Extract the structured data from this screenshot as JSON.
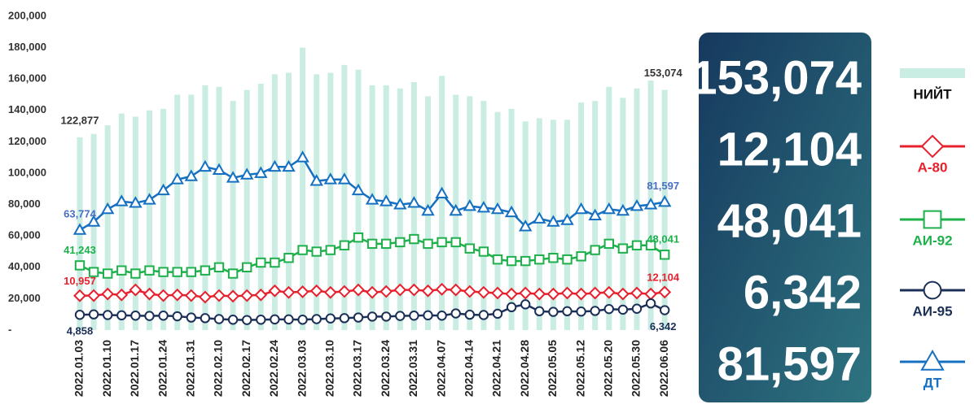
{
  "chart_data": {
    "type": "bar",
    "categories": [
      "2022.01.03",
      null,
      "2022.01.10",
      null,
      "2022.01.17",
      null,
      "2022.01.24",
      null,
      "2022.01.31",
      null,
      "2022.02.10",
      null,
      "2022.02.17",
      null,
      "2022.02.24",
      null,
      "2022.03.03",
      null,
      "2022.03.10",
      null,
      "2022.03.17",
      null,
      "2022.03.24",
      null,
      "2022.03.31",
      null,
      "2022.04.07",
      null,
      "2022.04.14",
      null,
      "2022.04.21",
      null,
      "2022.04.28",
      null,
      "2022.05.05",
      null,
      "2022.05.12",
      null,
      "2022.05.20",
      null,
      "2022.05.30",
      null,
      "2022.06.06"
    ],
    "ylim": [
      0,
      200000
    ],
    "yticks": [
      {
        "value": 0,
        "label": "-"
      },
      {
        "value": 20000,
        "label": "20,000"
      },
      {
        "value": 40000,
        "label": "40,000"
      },
      {
        "value": 60000,
        "label": "60,000"
      },
      {
        "value": 80000,
        "label": "80,000"
      },
      {
        "value": 100000,
        "label": "100,000"
      },
      {
        "value": 120000,
        "label": "120,000"
      },
      {
        "value": 140000,
        "label": "140,000"
      },
      {
        "value": 160000,
        "label": "160,000"
      },
      {
        "value": 180000,
        "label": "180,000"
      },
      {
        "value": 200000,
        "label": "200,000"
      }
    ],
    "y2lim": [
      0,
      100000
    ],
    "grid": false,
    "legend": "right",
    "series": [
      {
        "name": "НИЙТ",
        "type": "bar",
        "color": "#c9ece3",
        "label_color": "#333333",
        "values": [
          122877,
          125000,
          130500,
          138000,
          136000,
          140000,
          141000,
          150000,
          150000,
          156000,
          155000,
          146000,
          153000,
          157000,
          163000,
          164000,
          180000,
          163000,
          164000,
          169000,
          166000,
          156000,
          156000,
          154000,
          158000,
          149000,
          162000,
          150000,
          149000,
          146000,
          139000,
          141000,
          133000,
          135000,
          134000,
          134000,
          145000,
          146000,
          155000,
          148000,
          154000,
          159000,
          153074
        ],
        "value_labels": [
          "122,877",
          null,
          null,
          null,
          null,
          null,
          null,
          null,
          null,
          null,
          null,
          null,
          null,
          null,
          null,
          null,
          null,
          null,
          null,
          null,
          null,
          null,
          null,
          null,
          null,
          null,
          null,
          null,
          null,
          null,
          null,
          null,
          null,
          null,
          null,
          null,
          null,
          null,
          null,
          null,
          null,
          null,
          "153,074"
        ]
      },
      {
        "name": "А-80",
        "type": "line",
        "marker": "diamond",
        "axis": "y2",
        "color": "#e8202e",
        "label_color": "#e8202e",
        "values": [
          10957,
          11000,
          11500,
          11200,
          12800,
          11500,
          11000,
          11200,
          11000,
          10500,
          11000,
          10800,
          11000,
          11200,
          12500,
          12000,
          12200,
          12500,
          12000,
          12300,
          12800,
          12000,
          12300,
          12800,
          12800,
          12500,
          13000,
          12800,
          12300,
          12000,
          11800,
          11500,
          11800,
          11500,
          11500,
          11800,
          11500,
          11800,
          12000,
          11500,
          11800,
          11500,
          12104
        ],
        "value_labels": [
          "10,957",
          null,
          null,
          null,
          null,
          null,
          null,
          null,
          null,
          null,
          null,
          null,
          null,
          null,
          null,
          null,
          null,
          null,
          null,
          null,
          null,
          null,
          null,
          null,
          null,
          null,
          null,
          null,
          null,
          null,
          null,
          null,
          null,
          null,
          null,
          null,
          null,
          null,
          null,
          null,
          null,
          null,
          "12,104"
        ]
      },
      {
        "name": "АИ-92",
        "type": "line",
        "marker": "square",
        "color": "#1db04b",
        "label_color": "#1db04b",
        "values": [
          41243,
          37000,
          36000,
          38000,
          36000,
          38000,
          37000,
          37000,
          37000,
          38000,
          40000,
          36000,
          40000,
          43000,
          43000,
          46000,
          51000,
          50000,
          51000,
          54000,
          59000,
          55000,
          55000,
          56000,
          58000,
          55000,
          56000,
          56000,
          52000,
          50000,
          45000,
          44000,
          44000,
          45000,
          46000,
          45000,
          47000,
          51000,
          55000,
          52000,
          54000,
          54000,
          48041
        ],
        "value_labels": [
          "41,243",
          null,
          null,
          null,
          null,
          null,
          null,
          null,
          null,
          null,
          null,
          null,
          null,
          null,
          null,
          null,
          null,
          null,
          null,
          null,
          null,
          null,
          null,
          null,
          null,
          null,
          null,
          null,
          null,
          null,
          null,
          null,
          null,
          null,
          null,
          null,
          null,
          null,
          null,
          null,
          null,
          null,
          "48,041"
        ]
      },
      {
        "name": "АИ-95",
        "type": "line",
        "marker": "circle",
        "axis": "y2",
        "color": "#1b2f57",
        "label_color": "#1b2f57",
        "values": [
          4858,
          5000,
          4800,
          4700,
          4600,
          4500,
          4600,
          4400,
          4000,
          3800,
          3500,
          3300,
          3200,
          3300,
          3400,
          3400,
          3300,
          3500,
          3700,
          3800,
          4000,
          4300,
          4300,
          4500,
          4600,
          4700,
          4600,
          5300,
          4900,
          4800,
          5200,
          7300,
          8200,
          6000,
          5800,
          6000,
          5900,
          6100,
          6700,
          6500,
          6800,
          8500,
          6342
        ],
        "value_labels": [
          "4,858",
          null,
          null,
          null,
          null,
          null,
          null,
          null,
          null,
          null,
          null,
          null,
          null,
          null,
          null,
          null,
          null,
          null,
          null,
          null,
          null,
          null,
          null,
          null,
          null,
          null,
          null,
          null,
          null,
          null,
          null,
          null,
          null,
          null,
          null,
          null,
          null,
          null,
          null,
          null,
          null,
          null,
          "6,342"
        ]
      },
      {
        "name": "ДТ",
        "type": "line",
        "marker": "triangle",
        "color": "#1670c2",
        "label_color": "#4a6fc4",
        "values": [
          63774,
          69000,
          77000,
          82000,
          81000,
          83000,
          89000,
          96000,
          98000,
          104000,
          102000,
          97000,
          99000,
          100000,
          104000,
          104000,
          110000,
          95000,
          96000,
          96000,
          89000,
          83000,
          82000,
          80000,
          81000,
          76000,
          87000,
          76000,
          79000,
          78000,
          77000,
          75000,
          66000,
          71000,
          69000,
          70000,
          77000,
          73000,
          77000,
          76000,
          79000,
          80000,
          81597
        ],
        "value_labels": [
          "63,774",
          null,
          null,
          null,
          null,
          null,
          null,
          null,
          null,
          null,
          null,
          null,
          null,
          null,
          null,
          null,
          null,
          null,
          null,
          null,
          null,
          null,
          null,
          null,
          null,
          null,
          null,
          null,
          null,
          null,
          null,
          null,
          null,
          null,
          null,
          null,
          null,
          null,
          null,
          null,
          null,
          null,
          "81,597"
        ]
      }
    ]
  }
}
